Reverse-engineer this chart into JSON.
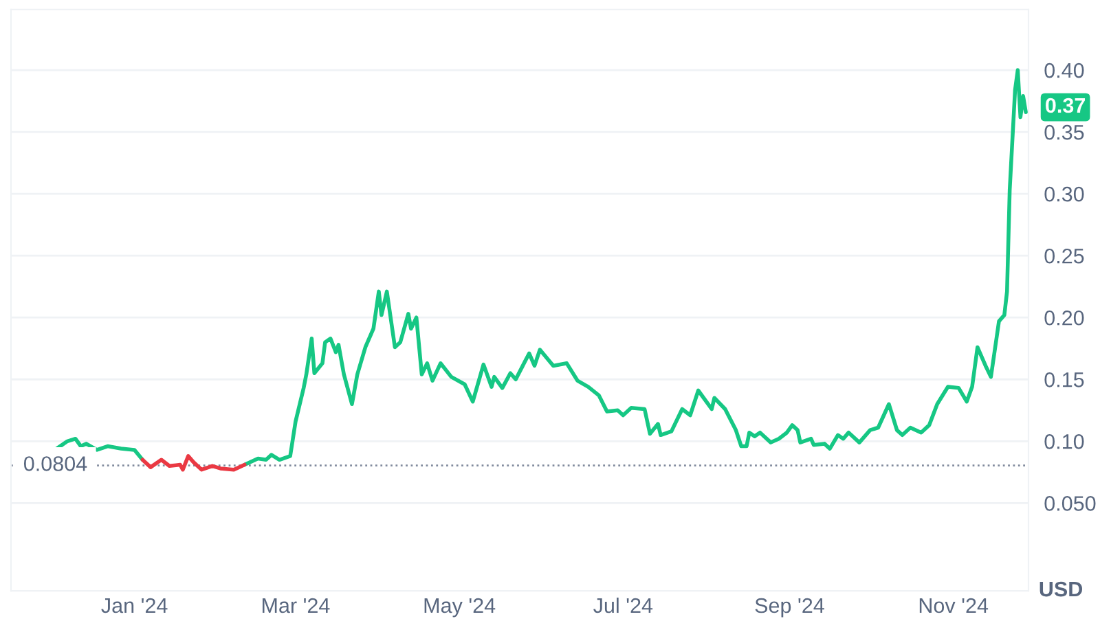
{
  "chart_data": {
    "type": "line",
    "x": [
      "2023-12-03",
      "2023-12-07",
      "2023-12-10",
      "2023-12-12",
      "2023-12-14",
      "2023-12-18",
      "2023-12-22",
      "2023-12-27",
      "2024-01-01",
      "2024-01-04",
      "2024-01-07",
      "2024-01-11",
      "2024-01-14",
      "2024-01-18",
      "2024-01-19",
      "2024-01-21",
      "2024-01-23",
      "2024-01-26",
      "2024-01-30",
      "2024-02-02",
      "2024-02-07",
      "2024-02-11",
      "2024-02-16",
      "2024-02-19",
      "2024-02-21",
      "2024-02-24",
      "2024-02-28",
      "2024-03-01",
      "2024-03-04",
      "2024-03-05",
      "2024-03-07",
      "2024-03-08",
      "2024-03-11",
      "2024-03-12",
      "2024-03-14",
      "2024-03-16",
      "2024-03-17",
      "2024-03-19",
      "2024-03-22",
      "2024-03-24",
      "2024-03-27",
      "2024-03-30",
      "2024-04-01",
      "2024-04-02",
      "2024-04-04",
      "2024-04-07",
      "2024-04-09",
      "2024-04-12",
      "2024-04-13",
      "2024-04-15",
      "2024-04-17",
      "2024-04-19",
      "2024-04-21",
      "2024-04-24",
      "2024-04-28",
      "2024-05-03",
      "2024-05-06",
      "2024-05-10",
      "2024-05-13",
      "2024-05-14",
      "2024-05-17",
      "2024-05-20",
      "2024-05-22",
      "2024-05-27",
      "2024-05-29",
      "2024-05-31",
      "2024-06-05",
      "2024-06-10",
      "2024-06-14",
      "2024-06-18",
      "2024-06-22",
      "2024-06-25",
      "2024-06-29",
      "2024-07-01",
      "2024-07-04",
      "2024-07-09",
      "2024-07-11",
      "2024-07-14",
      "2024-07-15",
      "2024-07-19",
      "2024-07-23",
      "2024-07-26",
      "2024-07-29",
      "2024-08-03",
      "2024-08-04",
      "2024-08-08",
      "2024-08-12",
      "2024-08-14",
      "2024-08-16",
      "2024-08-17",
      "2024-08-19",
      "2024-08-21",
      "2024-08-25",
      "2024-08-28",
      "2024-08-31",
      "2024-09-02",
      "2024-09-04",
      "2024-09-05",
      "2024-09-09",
      "2024-09-10",
      "2024-09-14",
      "2024-09-16",
      "2024-09-19",
      "2024-09-21",
      "2024-09-23",
      "2024-09-27",
      "2024-10-01",
      "2024-10-04",
      "2024-10-08",
      "2024-10-11",
      "2024-10-13",
      "2024-10-16",
      "2024-10-20",
      "2024-10-23",
      "2024-10-26",
      "2024-10-30",
      "2024-11-03",
      "2024-11-06",
      "2024-11-08",
      "2024-11-10",
      "2024-11-13",
      "2024-11-15",
      "2024-11-18",
      "2024-11-20",
      "2024-11-21",
      "2024-11-22",
      "2024-11-24",
      "2024-11-25",
      "2024-11-26",
      "2024-11-27",
      "2024-11-28"
    ],
    "series": [
      {
        "color": "#16c784",
        "values": [
          0.094,
          0.1,
          0.102,
          0.096,
          0.098,
          0.093,
          0.096,
          0.094,
          0.093,
          0.085,
          null,
          null,
          null,
          null,
          null,
          null,
          null,
          null,
          null,
          null,
          null,
          0.081,
          0.086,
          0.085,
          0.089,
          0.085,
          0.088,
          0.116,
          0.143,
          0.154,
          0.183,
          0.155,
          0.163,
          0.18,
          0.183,
          0.172,
          0.178,
          0.154,
          0.13,
          0.154,
          0.176,
          0.191,
          0.221,
          0.202,
          0.221,
          0.176,
          0.18,
          0.203,
          0.191,
          0.2,
          0.154,
          0.163,
          0.149,
          0.163,
          0.152,
          0.146,
          0.132,
          0.162,
          0.144,
          0.152,
          0.143,
          0.155,
          0.15,
          0.171,
          0.161,
          0.174,
          0.161,
          0.163,
          0.149,
          0.144,
          0.137,
          0.124,
          0.125,
          0.121,
          0.127,
          0.126,
          0.106,
          0.114,
          0.105,
          0.108,
          0.126,
          0.121,
          0.141,
          0.126,
          0.135,
          0.126,
          0.109,
          0.096,
          0.096,
          0.107,
          0.104,
          0.107,
          0.099,
          0.102,
          0.107,
          0.113,
          0.109,
          0.099,
          0.102,
          0.097,
          0.098,
          0.094,
          0.105,
          0.102,
          0.107,
          0.099,
          0.109,
          0.111,
          0.13,
          0.109,
          0.105,
          0.111,
          0.107,
          0.113,
          0.13,
          0.144,
          0.143,
          0.132,
          0.144,
          0.176,
          0.161,
          0.152,
          0.197,
          0.202,
          0.221,
          0.303,
          0.384,
          0.4,
          0.362,
          0.379,
          0.366
        ]
      },
      {
        "color": "#ea3943",
        "values": [
          null,
          null,
          null,
          null,
          null,
          null,
          null,
          null,
          null,
          0.085,
          0.079,
          0.085,
          0.08,
          0.081,
          0.077,
          0.088,
          0.083,
          0.077,
          0.08,
          0.078,
          0.077,
          0.081,
          null,
          null,
          null,
          null,
          null,
          null,
          null,
          null,
          null,
          null,
          null,
          null,
          null,
          null,
          null,
          null,
          null,
          null,
          null,
          null,
          null,
          null,
          null,
          null,
          null,
          null,
          null,
          null,
          null,
          null,
          null,
          null,
          null,
          null,
          null,
          null,
          null,
          null,
          null,
          null,
          null,
          null,
          null,
          null,
          null,
          null,
          null,
          null,
          null,
          null,
          null,
          null,
          null,
          null,
          null,
          null,
          null,
          null,
          null,
          null,
          null,
          null,
          null,
          null,
          null,
          null,
          null,
          null,
          null,
          null,
          null,
          null,
          null,
          null,
          null,
          null,
          null,
          null,
          null,
          null,
          null,
          null,
          null,
          null,
          null,
          null,
          null,
          null,
          null,
          null,
          null,
          null,
          null,
          null,
          null,
          null,
          null,
          null,
          null,
          null,
          null,
          null,
          null,
          null,
          null,
          null,
          null,
          null,
          null
        ]
      }
    ],
    "xlim": [
      "2023-11-16",
      "2024-11-29"
    ],
    "xticks": [
      {
        "value": "2024-01-01",
        "label": "Jan '24"
      },
      {
        "value": "2024-03-01",
        "label": "Mar '24"
      },
      {
        "value": "2024-05-01",
        "label": "May '24"
      },
      {
        "value": "2024-07-01",
        "label": "Jul '24"
      },
      {
        "value": "2024-09-01",
        "label": "Sep '24"
      },
      {
        "value": "2024-11-01",
        "label": "Nov '24"
      }
    ],
    "ylim": [
      -0.021,
      0.449
    ],
    "yticks": [
      {
        "value": 0.05,
        "label": "0.050"
      },
      {
        "value": 0.1,
        "label": "0.10"
      },
      {
        "value": 0.15,
        "label": "0.15"
      },
      {
        "value": 0.2,
        "label": "0.20"
      },
      {
        "value": 0.25,
        "label": "0.25"
      },
      {
        "value": 0.3,
        "label": "0.30"
      },
      {
        "value": 0.35,
        "label": "0.35"
      },
      {
        "value": 0.4,
        "label": "0.40"
      }
    ],
    "ylabel": "USD",
    "grid": "y",
    "ref_lines": [
      {
        "axis": "y",
        "value": 0.0804,
        "label": "0.0804",
        "color": "#808a9d",
        "line_style": "dotted"
      }
    ],
    "annotations": [
      {
        "text": "0.37",
        "x": "2024-11-28",
        "y": 0.37
      }
    ]
  }
}
